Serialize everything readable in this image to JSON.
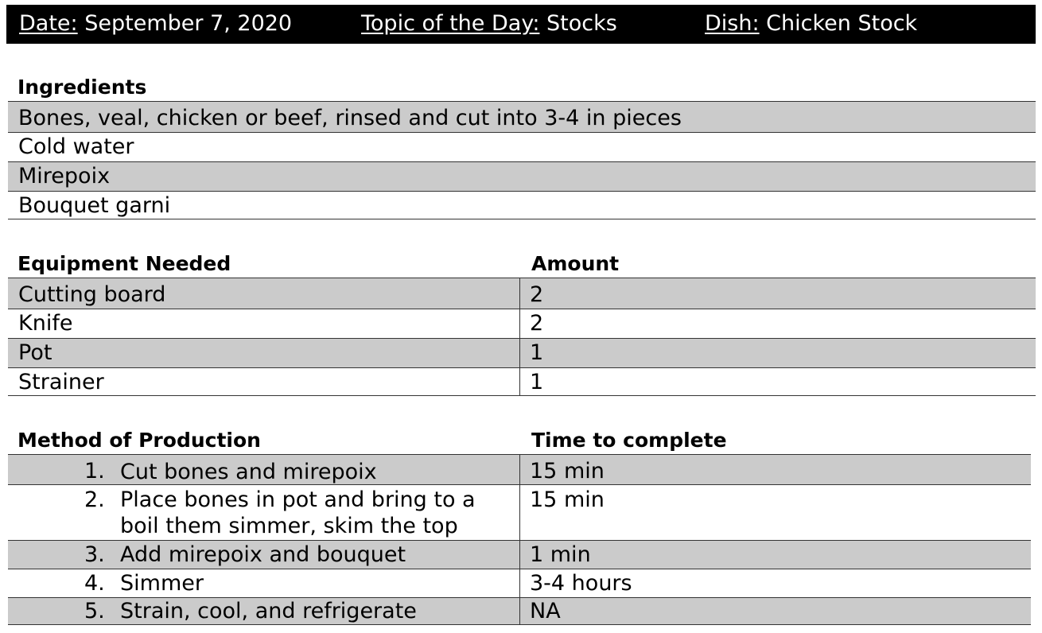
{
  "header": {
    "date_label": "Date:",
    "date_value": "September 7, 2020",
    "topic_label": "Topic of the Day:",
    "topic_value": "Stocks",
    "dish_label": "Dish:",
    "dish_value": "Chicken Stock"
  },
  "ingredients": {
    "heading": "Ingredients",
    "items": [
      "Bones, veal, chicken or beef, rinsed and cut into 3-4 in pieces",
      "Cold water",
      "Mirepoix",
      "Bouquet garni"
    ]
  },
  "equipment": {
    "heading": "Equipment Needed",
    "amount_heading": "Amount",
    "rows": [
      {
        "name": "Cutting board",
        "amount": "2"
      },
      {
        "name": "Knife",
        "amount": "2"
      },
      {
        "name": "Pot",
        "amount": "1"
      },
      {
        "name": "Strainer",
        "amount": "1"
      }
    ]
  },
  "method": {
    "heading": "Method of Production",
    "time_heading": "Time to complete",
    "steps": [
      {
        "number": "1.",
        "lines": [
          "Cut bones and mirepoix"
        ],
        "time": "15 min"
      },
      {
        "number": "2.",
        "lines": [
          "Place bones in pot and bring to a",
          "boil them simmer, skim the top"
        ],
        "time": "15 min"
      },
      {
        "number": "3.",
        "lines": [
          "Add mirepoix and bouquet"
        ],
        "time": "1 min"
      },
      {
        "number": "4.",
        "lines": [
          "Simmer"
        ],
        "time": "3-4 hours"
      },
      {
        "number": "5.",
        "lines": [
          "Strain, cool, and refrigerate"
        ],
        "time": "NA"
      }
    ]
  }
}
